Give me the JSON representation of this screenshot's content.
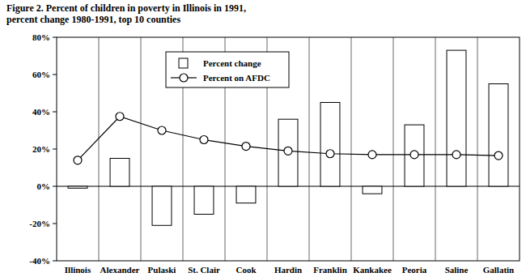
{
  "chart_data": {
    "type": "bar",
    "title": [
      "Figure 2. Percent of children in poverty in Illinois in 1991,",
      "percent change 1980-1991,  top 10 counties"
    ],
    "categories": [
      "Illinois",
      "Alexander",
      "Pulaski",
      "St. Clair",
      "Cook",
      "Hardin",
      "Franklin",
      "Kankakee",
      "Peoria",
      "Saline",
      "Gallatin"
    ],
    "series": [
      {
        "name": "Percent change",
        "type": "bar",
        "color": "#ffffff",
        "values": [
          -1,
          15,
          -21,
          -15,
          -9,
          36,
          45,
          -4,
          33,
          73,
          55
        ]
      },
      {
        "name": "Percent on AFDC",
        "type": "line",
        "color": "#000000",
        "marker": "circle",
        "values": [
          14,
          37.5,
          30,
          25,
          21.5,
          19,
          17.5,
          17,
          17,
          17,
          16.5
        ]
      }
    ],
    "ylim": [
      -40,
      80
    ],
    "yticks": [
      {
        "value": -40,
        "label": "-40%"
      },
      {
        "value": -20,
        "label": "-20%"
      },
      {
        "value": 0,
        "label": "0%"
      },
      {
        "value": 20,
        "label": "20%"
      },
      {
        "value": 40,
        "label": "40%"
      },
      {
        "value": 60,
        "label": "60%"
      },
      {
        "value": 80,
        "label": "80%"
      }
    ],
    "grid": false,
    "legend": "top"
  }
}
